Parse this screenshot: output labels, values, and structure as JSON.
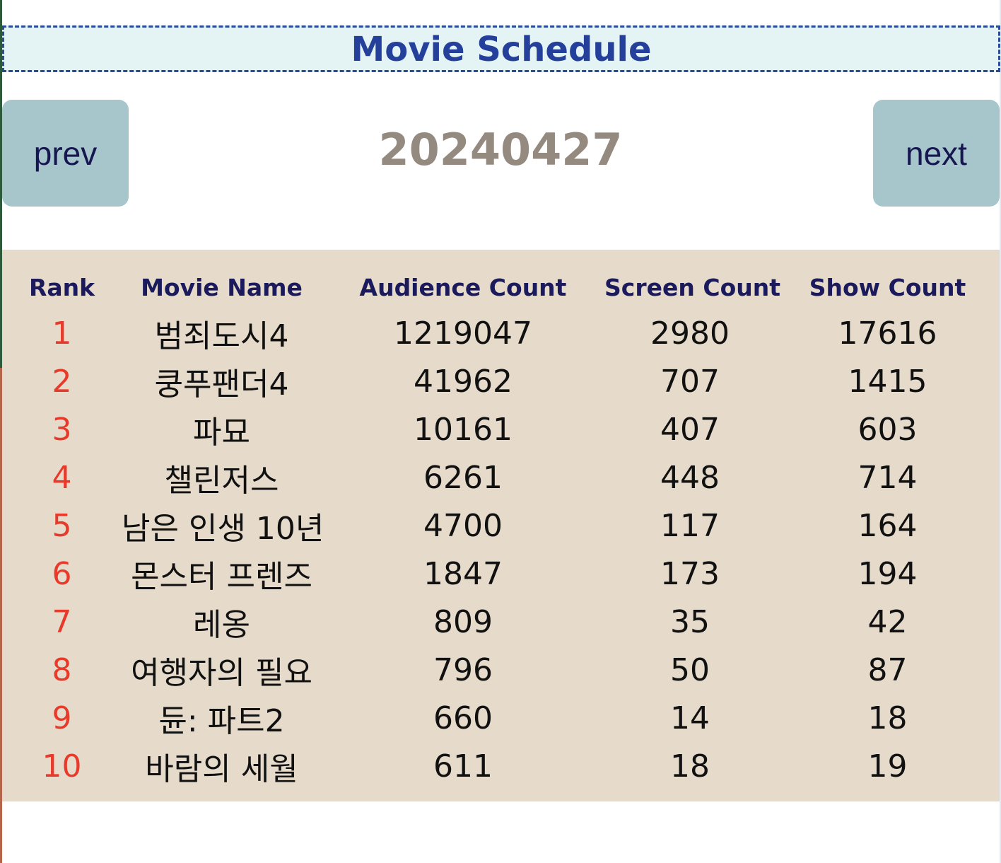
{
  "header": {
    "title": "Movie Schedule"
  },
  "navigation": {
    "prev_label": "prev",
    "next_label": "next",
    "date": "20240427"
  },
  "table": {
    "columns": [
      "Rank",
      "Movie Name",
      "Audience Count",
      "Screen Count",
      "Show Count"
    ],
    "rows": [
      {
        "rank": "1",
        "name": "범죄도시4",
        "audience": "1219047",
        "screens": "2980",
        "shows": "17616"
      },
      {
        "rank": "2",
        "name": "쿵푸팬더4",
        "audience": "41962",
        "screens": "707",
        "shows": "1415"
      },
      {
        "rank": "3",
        "name": "파묘",
        "audience": "10161",
        "screens": "407",
        "shows": "603"
      },
      {
        "rank": "4",
        "name": "챌린저스",
        "audience": "6261",
        "screens": "448",
        "shows": "714"
      },
      {
        "rank": "5",
        "name": "남은 인생 10년",
        "audience": "4700",
        "screens": "117",
        "shows": "164"
      },
      {
        "rank": "6",
        "name": "몬스터 프렌즈",
        "audience": "1847",
        "screens": "173",
        "shows": "194"
      },
      {
        "rank": "7",
        "name": "레옹",
        "audience": "809",
        "screens": "35",
        "shows": "42"
      },
      {
        "rank": "8",
        "name": "여행자의 필요",
        "audience": "796",
        "screens": "50",
        "shows": "87"
      },
      {
        "rank": "9",
        "name": "듄: 파트2",
        "audience": "660",
        "screens": "14",
        "shows": "18"
      },
      {
        "rank": "10",
        "name": "바람의 세월",
        "audience": "611",
        "screens": "18",
        "shows": "19"
      }
    ]
  },
  "colors": {
    "title": "#24409a",
    "banner_bg": "#e4f4f4",
    "button_bg": "#a6c6cc",
    "date_text": "#948a80",
    "table_bg": "#e6dbca",
    "rank_text": "#e8392a",
    "header_text": "#1a1a5c"
  }
}
